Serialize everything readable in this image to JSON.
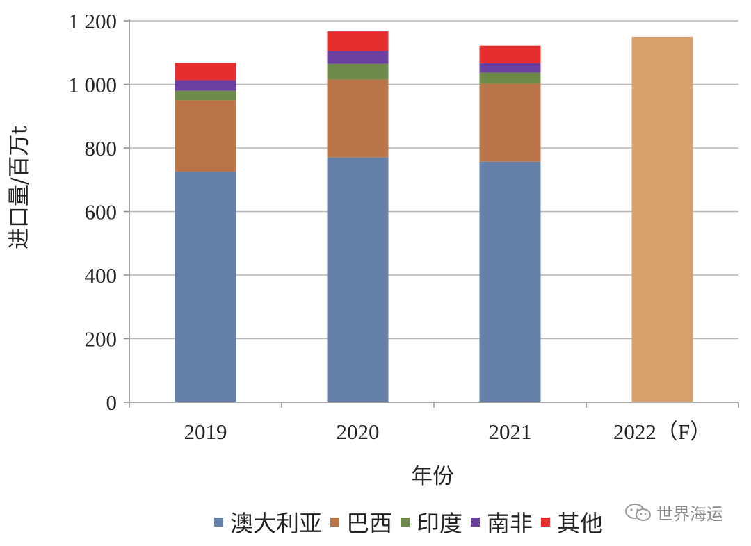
{
  "chart_data": {
    "type": "bar",
    "stacked": true,
    "categories": [
      "2019",
      "2020",
      "2021",
      "2022（F）"
    ],
    "series": [
      {
        "name": "澳大利亚",
        "color": "#6480a8",
        "values": [
          725,
          770,
          757,
          null
        ]
      },
      {
        "name": "巴西",
        "color": "#b97548",
        "values": [
          225,
          245,
          245,
          null
        ]
      },
      {
        "name": "印度",
        "color": "#6e8a4a",
        "values": [
          30,
          50,
          35,
          null
        ]
      },
      {
        "name": "南非",
        "color": "#6a3fa0",
        "values": [
          33,
          40,
          30,
          null
        ]
      },
      {
        "name": "其他",
        "color": "#e52d2d",
        "values": [
          55,
          62,
          55,
          null
        ]
      }
    ],
    "forecast": {
      "category": "2022（F）",
      "value": 1150,
      "color": "#d8a06c"
    },
    "xlabel": "年份",
    "ylabel": "进口量/百万t",
    "ylim": [
      0,
      1200
    ],
    "yticks": [
      0,
      200,
      400,
      600,
      800,
      1000,
      1200
    ],
    "ytick_labels": [
      "0",
      "200",
      "400",
      "600",
      "800",
      "1 000",
      "1 200"
    ],
    "grid": true,
    "legend_position": "bottom"
  },
  "watermark": {
    "text": "世界海运",
    "icon": "wechat-icon"
  }
}
